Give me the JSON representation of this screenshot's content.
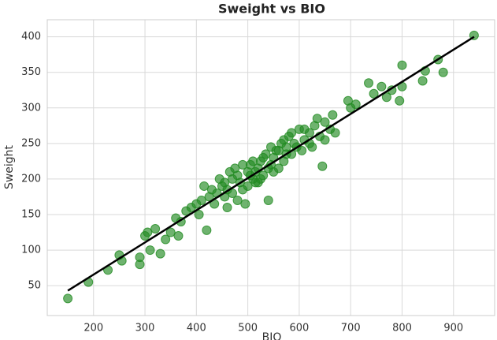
{
  "chart_data": {
    "type": "scatter",
    "title": "Sweight vs BIO",
    "x_label": "BIO",
    "y_label": "Sweight",
    "x": [
      150,
      190,
      228,
      250,
      255,
      290,
      290,
      300,
      305,
      310,
      320,
      330,
      340,
      350,
      360,
      365,
      370,
      380,
      390,
      400,
      405,
      420,
      425,
      430,
      440,
      450,
      455,
      460,
      465,
      470,
      480,
      490,
      495,
      500,
      505,
      510,
      515,
      520,
      525,
      530,
      535,
      540,
      545,
      550,
      555,
      560,
      565,
      570,
      575,
      580,
      585,
      590,
      600,
      605,
      610,
      620,
      625,
      630,
      640,
      645,
      650,
      660,
      665,
      670,
      695,
      700,
      710,
      735,
      745,
      760,
      770,
      780,
      795,
      800,
      800,
      840,
      845,
      870,
      880,
      940,
      410,
      415,
      435,
      445,
      460,
      470,
      475,
      485,
      490,
      500,
      505,
      510,
      515,
      520,
      530,
      540,
      550,
      560,
      570,
      585,
      595,
      610,
      620,
      635,
      650,
      455,
      480,
      525,
      545,
      575
    ],
    "values": [
      32,
      55,
      72,
      93,
      85,
      80,
      90,
      120,
      125,
      100,
      130,
      95,
      115,
      125,
      145,
      120,
      140,
      155,
      160,
      165,
      150,
      128,
      175,
      185,
      180,
      190,
      195,
      160,
      210,
      200,
      205,
      185,
      165,
      210,
      220,
      200,
      195,
      215,
      225,
      205,
      235,
      170,
      220,
      230,
      240,
      215,
      250,
      225,
      245,
      260,
      235,
      250,
      270,
      240,
      255,
      265,
      245,
      275,
      260,
      218,
      280,
      270,
      290,
      265,
      310,
      300,
      305,
      335,
      320,
      330,
      315,
      325,
      310,
      330,
      360,
      338,
      352,
      368,
      350,
      402,
      170,
      190,
      165,
      200,
      185,
      180,
      215,
      195,
      220,
      190,
      205,
      225,
      210,
      195,
      230,
      215,
      210,
      240,
      255,
      265,
      245,
      270,
      250,
      285,
      255,
      175,
      170,
      200,
      245,
      235
    ],
    "color": "#228b22",
    "fit": {
      "x": [
        150,
        940
      ],
      "values": [
        43,
        400
      ],
      "color": "#000000"
    },
    "xlim": [
      110,
      980
    ],
    "xticks": [
      200,
      300,
      400,
      500,
      600,
      700,
      800,
      900
    ],
    "ylim": [
      8,
      424
    ],
    "yticks": [
      50,
      100,
      150,
      200,
      250,
      300,
      350,
      400
    ],
    "grid": true
  }
}
